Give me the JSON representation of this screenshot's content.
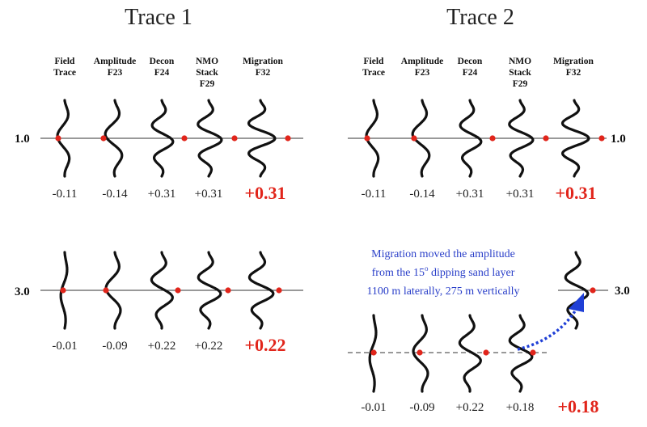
{
  "trace1": {
    "title": "Trace 1"
  },
  "trace2": {
    "title": "Trace 2"
  },
  "columns": [
    {
      "lines": [
        "Field",
        "Trace"
      ]
    },
    {
      "lines": [
        "Amplitude",
        "F23"
      ]
    },
    {
      "lines": [
        "Decon",
        "F24"
      ]
    },
    {
      "lines": [
        "NMO",
        "Stack",
        "F29"
      ]
    },
    {
      "lines": [
        "Migration",
        "F32"
      ]
    }
  ],
  "times": {
    "t1": "1.0",
    "t3": "3.0"
  },
  "values": {
    "t1_trace1": [
      "-0.11",
      "-0.14",
      "+0.31",
      "+0.31",
      "+0.31"
    ],
    "t1_trace2": [
      "-0.11",
      "-0.14",
      "+0.31",
      "+0.31",
      "+0.31"
    ],
    "t3_trace1": [
      "-0.01",
      "-0.09",
      "+0.22",
      "+0.22",
      "+0.22"
    ],
    "t3_trace2": [
      "-0.01",
      "-0.09",
      "+0.22",
      "+0.18",
      "+0.18"
    ]
  },
  "annotation": {
    "line1": "Migration moved the amplitude",
    "line2a": "from the 15",
    "line2_sup": "o",
    "line2b": " dipping sand layer",
    "line3": "1100 m laterally, 275 m vertically"
  },
  "colors": {
    "accent": "#e1251b",
    "annotation": "#2a3fc9",
    "arrow": "#1f3fd6"
  }
}
